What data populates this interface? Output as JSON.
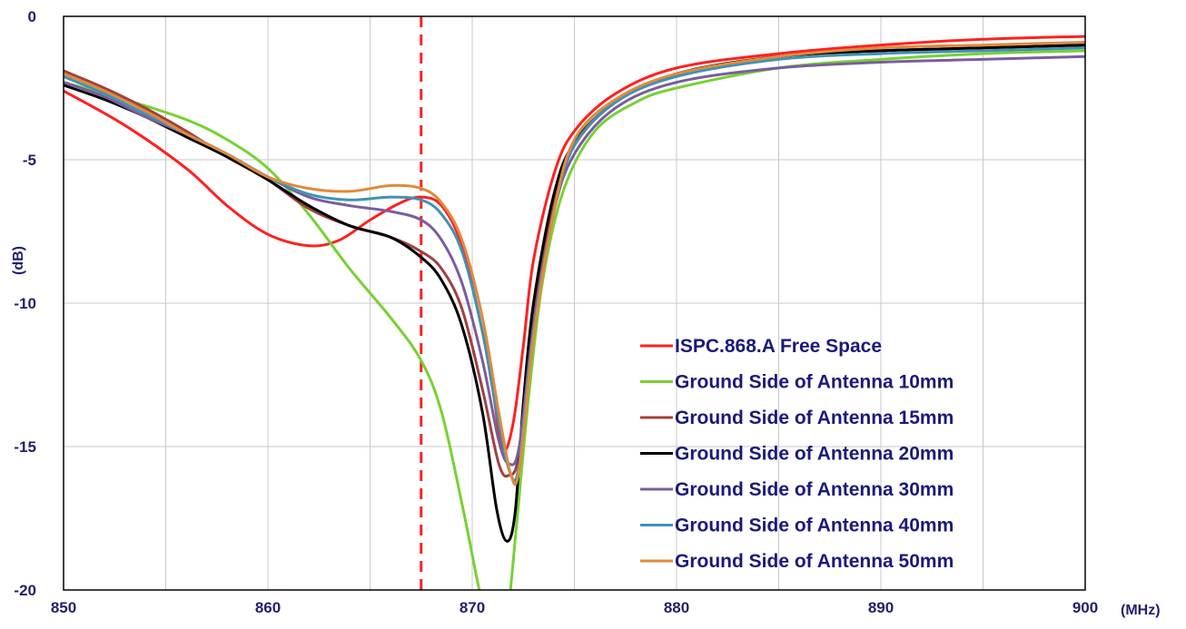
{
  "chart_data": {
    "type": "line",
    "xlabel": "(MHz)",
    "ylabel": "(dB)",
    "xlim": [
      850,
      900
    ],
    "ylim": [
      -20,
      0
    ],
    "x_ticks": [
      "850",
      "860",
      "870",
      "880",
      "890",
      "900"
    ],
    "y_ticks": [
      "0",
      "-5",
      "-10",
      "-15",
      "-20"
    ],
    "grid": true,
    "legend_position": "bottom-right",
    "marker_line": {
      "x": 867.5,
      "color": "#ff2020",
      "style": "dashed"
    },
    "series": [
      {
        "name": "ISPC.868.A Free Space",
        "color": "#ff2020",
        "x": [
          850,
          853,
          856,
          858,
          860,
          862,
          863.5,
          865,
          866.5,
          867.5,
          868.5,
          869.5,
          870.5,
          871,
          871.5,
          872,
          872.5,
          873,
          874,
          875,
          877,
          880,
          885,
          890,
          895,
          900
        ],
        "y": [
          -2.6,
          -3.8,
          -5.3,
          -6.6,
          -7.6,
          -8.0,
          -7.8,
          -7.1,
          -6.5,
          -6.3,
          -6.6,
          -8.0,
          -11.0,
          -13.0,
          -15.1,
          -14.2,
          -11.5,
          -8.5,
          -5.5,
          -4.0,
          -2.7,
          -1.8,
          -1.3,
          -1.0,
          -0.8,
          -0.7
        ]
      },
      {
        "name": "Ground Side of Antenna 10mm",
        "color": "#77d133",
        "x": [
          850,
          853,
          856,
          858,
          860,
          862,
          864,
          866,
          867.5,
          868.5,
          869.5,
          870.2,
          870.5,
          871,
          871.5,
          871.8,
          872.2,
          872.8,
          873.5,
          874.5,
          876,
          878,
          880,
          885,
          890,
          895,
          900
        ],
        "y": [
          -2.3,
          -2.9,
          -3.6,
          -4.3,
          -5.3,
          -6.9,
          -8.8,
          -10.5,
          -12.0,
          -13.8,
          -17.0,
          -19.5,
          -20.5,
          -22,
          -22,
          -20.5,
          -17.5,
          -13.0,
          -9.0,
          -6.0,
          -4.0,
          -3.0,
          -2.5,
          -1.8,
          -1.5,
          -1.3,
          -1.2
        ]
      },
      {
        "name": "Ground Side of Antenna 15mm",
        "color": "#a0413f",
        "x": [
          850,
          852,
          854,
          856,
          858,
          860,
          862,
          864,
          866,
          867.5,
          868.5,
          869.5,
          870.5,
          871.3,
          871.8,
          872.3,
          873,
          874,
          875,
          877,
          880,
          885,
          890,
          895,
          900
        ],
        "y": [
          -1.9,
          -2.5,
          -3.2,
          -4.0,
          -4.9,
          -5.7,
          -6.7,
          -7.3,
          -7.7,
          -8.2,
          -8.8,
          -10.2,
          -13.0,
          -15.6,
          -16.0,
          -15.2,
          -10.5,
          -6.5,
          -4.5,
          -3.0,
          -2.0,
          -1.4,
          -1.2,
          -1.1,
          -1.0
        ]
      },
      {
        "name": "Ground Side of Antenna 20mm",
        "color": "#000000",
        "x": [
          850,
          852,
          854,
          856,
          858,
          860,
          862,
          864,
          866,
          867.5,
          868.5,
          869.5,
          870.5,
          871.2,
          871.7,
          872.1,
          872.5,
          873,
          874,
          875,
          877,
          880,
          885,
          890,
          895,
          900
        ],
        "y": [
          -2.4,
          -2.9,
          -3.5,
          -4.2,
          -4.9,
          -5.7,
          -6.6,
          -7.3,
          -7.7,
          -8.4,
          -9.2,
          -10.8,
          -13.8,
          -17.2,
          -18.3,
          -17.3,
          -13.5,
          -10.0,
          -6.2,
          -4.4,
          -3.0,
          -2.0,
          -1.4,
          -1.2,
          -1.1,
          -1.0
        ]
      },
      {
        "name": "Ground Side of Antenna 30mm",
        "color": "#7a5c9e",
        "x": [
          850,
          852,
          854,
          856,
          858,
          860,
          862,
          864,
          866,
          867.5,
          868.5,
          869.5,
          870.5,
          871.3,
          871.8,
          872.3,
          873,
          874,
          875,
          877,
          880,
          885,
          890,
          895,
          900
        ],
        "y": [
          -2.3,
          -2.8,
          -3.5,
          -4.1,
          -4.8,
          -5.6,
          -6.3,
          -6.6,
          -6.8,
          -7.1,
          -7.8,
          -9.3,
          -12.0,
          -14.8,
          -15.6,
          -15.0,
          -10.8,
          -6.8,
          -4.8,
          -3.2,
          -2.3,
          -1.8,
          -1.6,
          -1.5,
          -1.4
        ]
      },
      {
        "name": "Ground Side of Antenna 40mm",
        "color": "#3e93b5",
        "x": [
          850,
          852,
          854,
          856,
          858,
          860,
          862,
          864,
          866,
          867.5,
          868.5,
          869.5,
          870.5,
          871.3,
          871.9,
          872.3,
          873,
          874,
          875,
          877,
          880,
          885,
          890,
          895,
          900
        ],
        "y": [
          -2.1,
          -2.7,
          -3.4,
          -4.1,
          -4.8,
          -5.6,
          -6.2,
          -6.4,
          -6.3,
          -6.4,
          -6.9,
          -8.2,
          -11.0,
          -14.2,
          -16.0,
          -15.6,
          -11.0,
          -6.8,
          -4.5,
          -3.0,
          -2.1,
          -1.5,
          -1.3,
          -1.2,
          -1.1
        ]
      },
      {
        "name": "Ground Side of Antenna 50mm",
        "color": "#e08a3c",
        "x": [
          850,
          852,
          854,
          856,
          858,
          860,
          862,
          864,
          866,
          867.5,
          868.5,
          869.5,
          870.5,
          871.3,
          871.9,
          872.3,
          873,
          874,
          875,
          877,
          880,
          885,
          890,
          895,
          900
        ],
        "y": [
          -2.0,
          -2.6,
          -3.3,
          -4.1,
          -4.8,
          -5.6,
          -6.0,
          -6.1,
          -5.9,
          -6.0,
          -6.5,
          -7.8,
          -10.5,
          -13.8,
          -16.0,
          -15.8,
          -11.2,
          -6.8,
          -4.3,
          -2.9,
          -2.0,
          -1.4,
          -1.1,
          -1.0,
          -0.9
        ]
      }
    ]
  }
}
